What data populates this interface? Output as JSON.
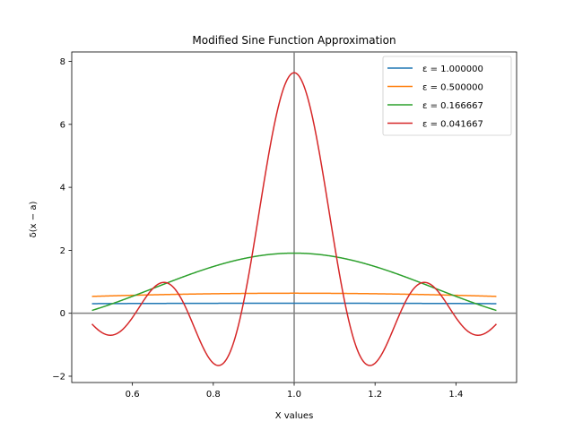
{
  "chart_data": {
    "type": "line",
    "title": "Modified Sine Function Approximation",
    "xlabel": "X values",
    "ylabel": "δ(x − a)",
    "xlim": [
      0.45,
      1.55
    ],
    "ylim": [
      -2.2,
      8.3
    ],
    "xticks": [
      0.6,
      0.8,
      1.0,
      1.2,
      1.4
    ],
    "xtick_labels": [
      "0.6",
      "0.8",
      "1.0",
      "1.2",
      "1.4"
    ],
    "yticks": [
      -2,
      0,
      2,
      4,
      6,
      8
    ],
    "ytick_labels": [
      "−2",
      "0",
      "2",
      "4",
      "6",
      "8"
    ],
    "reference_lines": {
      "vertical_x": 1.0,
      "horizontal_y": 0.0,
      "color": "#808080"
    },
    "x_range": [
      0.5,
      1.5
    ],
    "grid": false,
    "legend_placement": "upper-right",
    "series": [
      {
        "name": "ε = 1.000000",
        "epsilon": 1.0,
        "color": "#1f77b4"
      },
      {
        "name": "ε = 0.500000",
        "epsilon": 0.5,
        "color": "#ff7f0e"
      },
      {
        "name": "ε = 0.166667",
        "epsilon": 0.166667,
        "color": "#2ca02c"
      },
      {
        "name": "ε = 0.041667",
        "epsilon": 0.041667,
        "color": "#d62728"
      }
    ]
  }
}
